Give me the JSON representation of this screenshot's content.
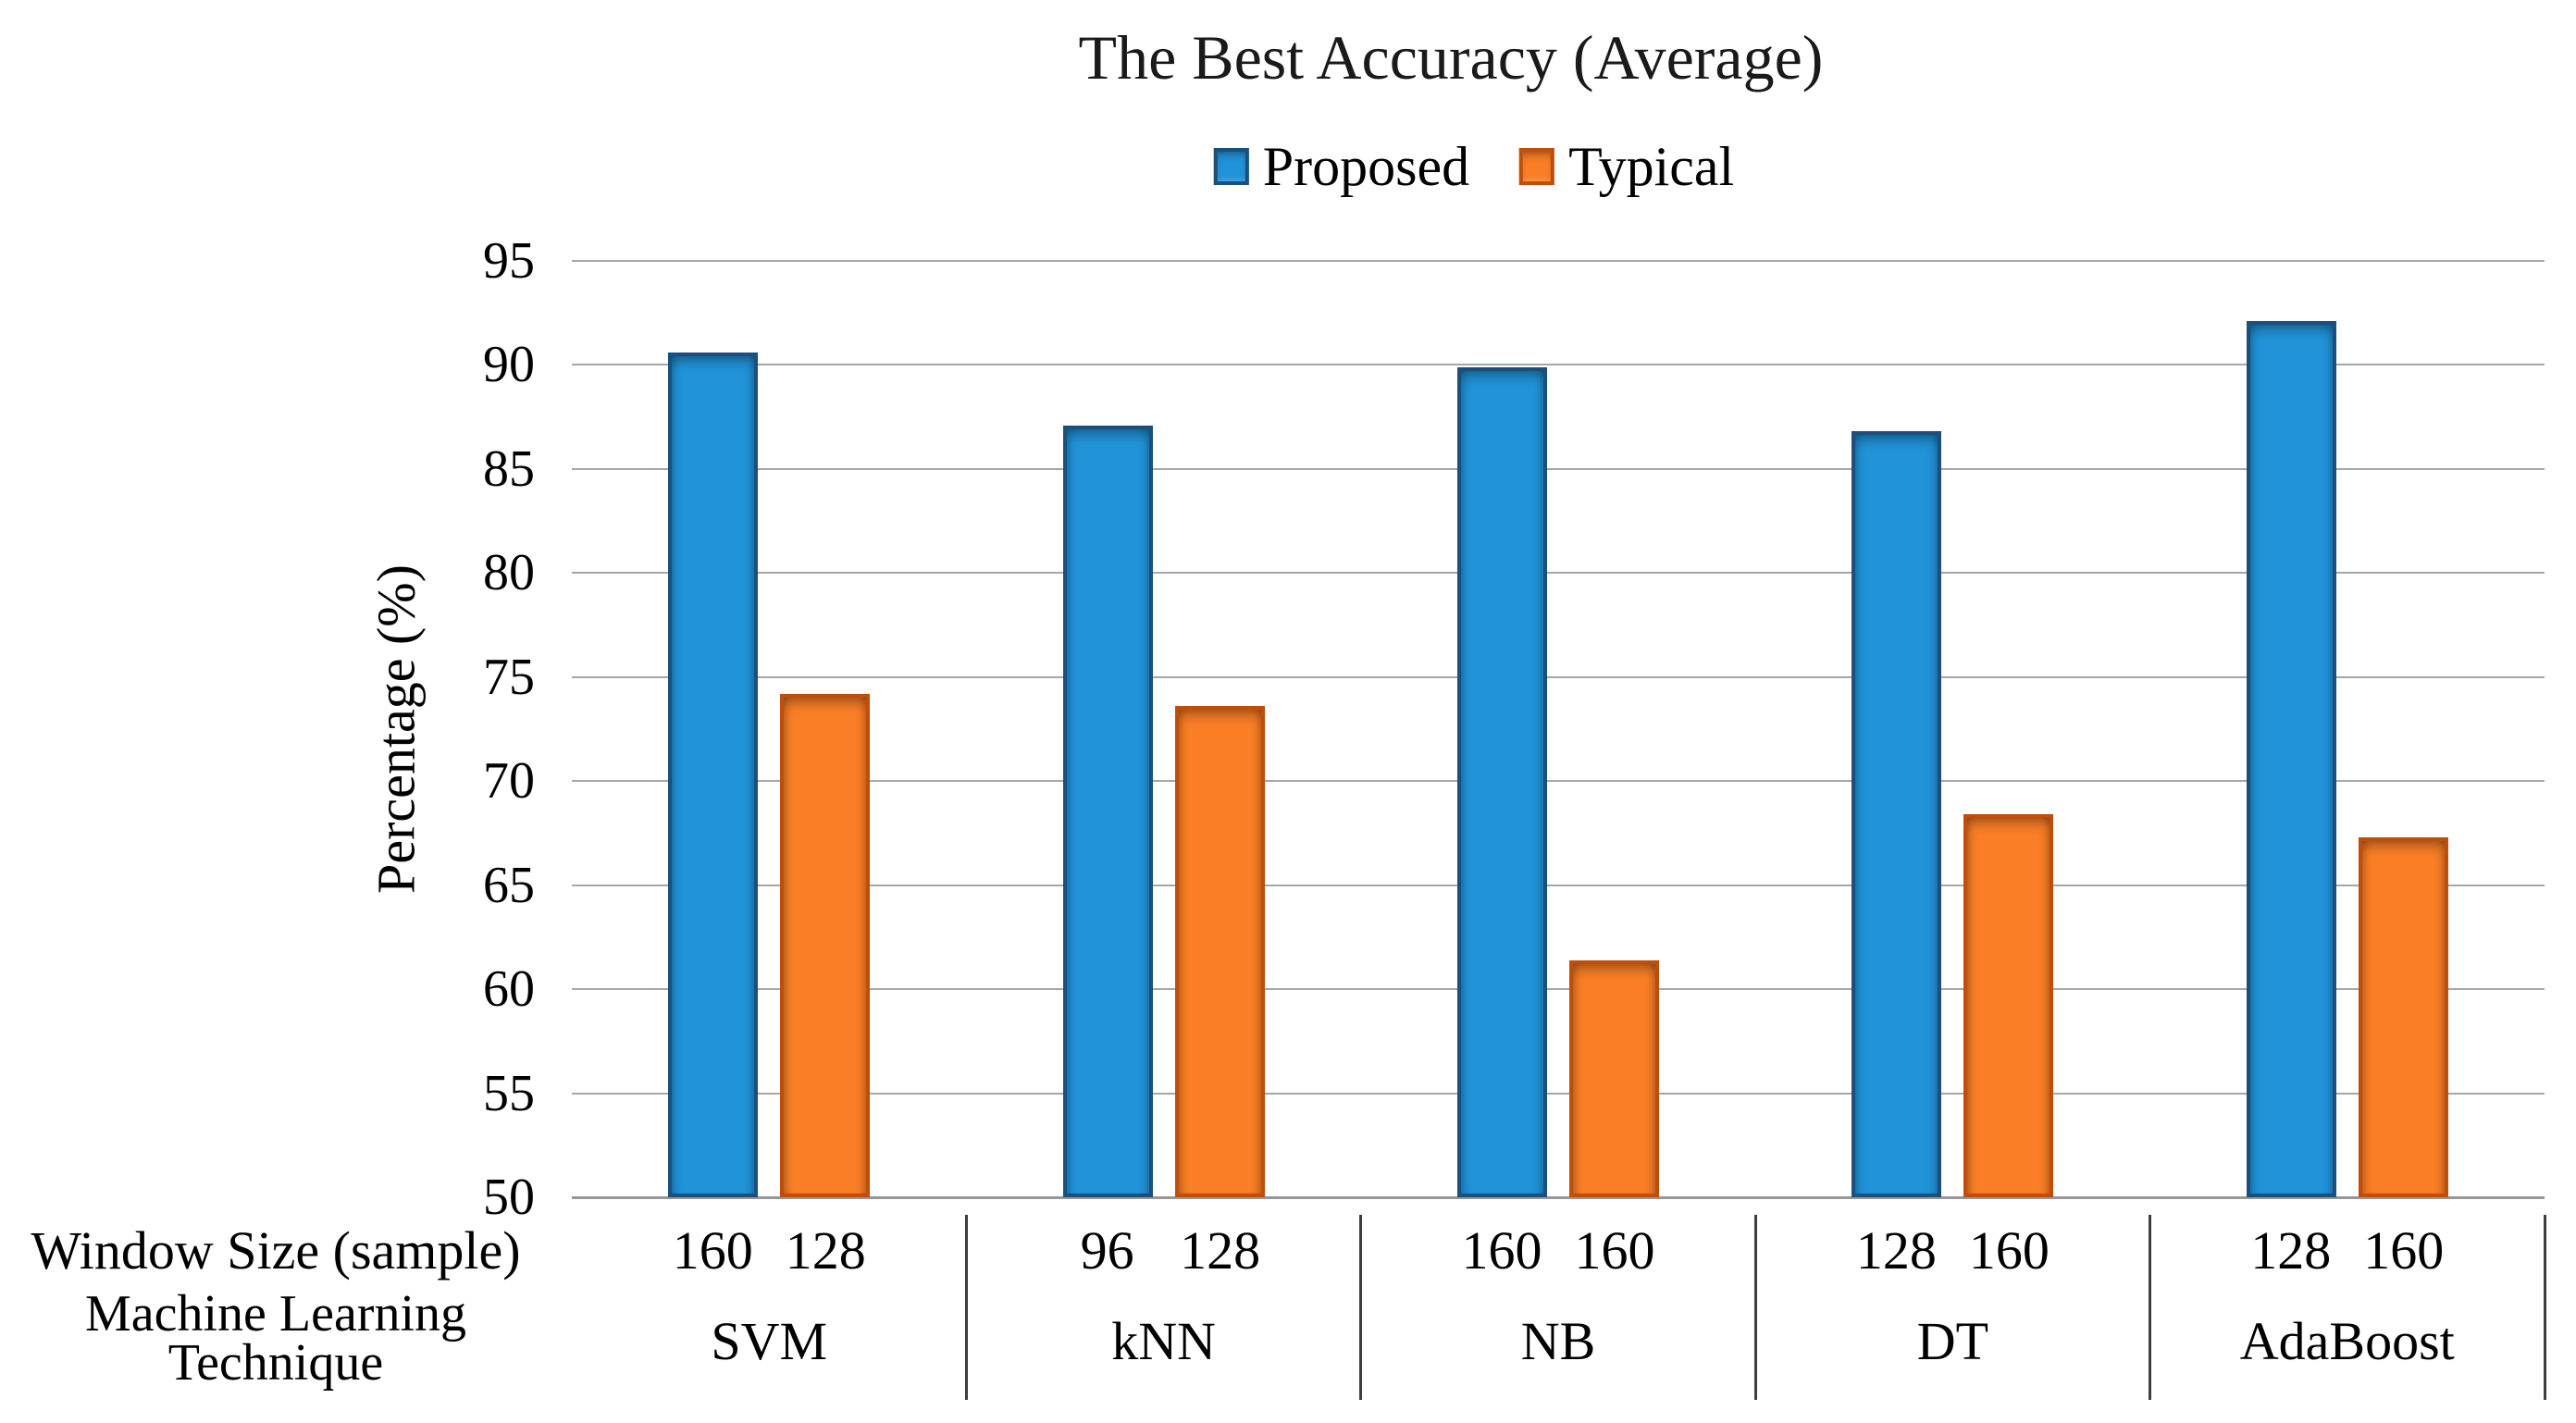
{
  "title": "The Best Accuracy (Average)",
  "legend": {
    "items": [
      {
        "label": "Proposed"
      },
      {
        "label": "Typical"
      }
    ]
  },
  "y_axis": {
    "label": "Percentage (%)",
    "min": 50,
    "max": 95,
    "step": 5
  },
  "x_axis": {
    "row1_label": "Window Size (sample)",
    "row2_label_line1": "Machine Learning",
    "row2_label_line2": "Technique"
  },
  "colors": {
    "proposed_fill": "#2193D8",
    "proposed_border": "#1B4F7E",
    "typical_fill": "#F97E26",
    "typical_border": "#BF4E0D",
    "gridline": "#A6A6A6",
    "axis_line": "#989898",
    "divider": "#3d3d3d",
    "text": "#000000"
  },
  "chart_data": {
    "type": "bar",
    "title": "The Best Accuracy (Average)",
    "xlabel": "Machine Learning Technique",
    "ylabel": "Percentage (%)",
    "ylim": [
      50,
      95
    ],
    "ytick_step": 5,
    "grid": true,
    "legend_position": "top",
    "categories": [
      "SVM",
      "kNN",
      "NB",
      "DT",
      "AdaBoost"
    ],
    "window_sizes": [
      [
        "160",
        "128"
      ],
      [
        "96",
        "128"
      ],
      [
        "160",
        "160"
      ],
      [
        "128",
        "160"
      ],
      [
        "128",
        "160"
      ]
    ],
    "series": [
      {
        "name": "Proposed",
        "color": "#2193D8",
        "border": "#1B4F7E",
        "values": [
          90.6,
          87.1,
          89.9,
          86.8,
          92.1
        ]
      },
      {
        "name": "Typical",
        "color": "#F97E26",
        "border": "#BF4E0D",
        "values": [
          74.2,
          73.6,
          61.4,
          68.4,
          67.3
        ]
      }
    ]
  }
}
